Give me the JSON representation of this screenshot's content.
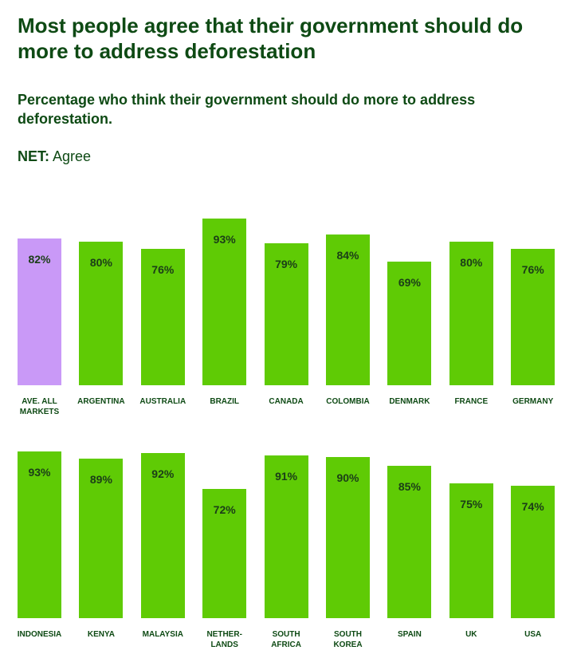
{
  "title": "Most people agree that their government should do more to address deforestation",
  "subtitle": "Percentage who think their government should do more to address deforestation.",
  "net_label": "NET:",
  "net_value": "Agree",
  "chart_data": [
    {
      "type": "bar",
      "categories": [
        "AVE. ALL\nMARKETS",
        "ARGENTINA",
        "AUSTRALIA",
        "BRAZIL",
        "CANADA",
        "COLOMBIA",
        "DENMARK",
        "FRANCE",
        "GERMANY"
      ],
      "values": [
        82,
        80,
        76,
        93,
        79,
        84,
        69,
        80,
        76
      ],
      "value_labels": [
        "82%",
        "80%",
        "76%",
        "93%",
        "79%",
        "84%",
        "69%",
        "80%",
        "76%"
      ],
      "colors": [
        "#c999f7",
        "#5fcb05",
        "#5fcb05",
        "#5fcb05",
        "#5fcb05",
        "#5fcb05",
        "#5fcb05",
        "#5fcb05",
        "#5fcb05"
      ]
    },
    {
      "type": "bar",
      "categories": [
        "INDONESIA",
        "KENYA",
        "MALAYSIA",
        "NETHER-\nLANDS",
        "SOUTH\nAFRICA",
        "SOUTH\nKOREA",
        "SPAIN",
        "UK",
        "USA"
      ],
      "values": [
        93,
        89,
        92,
        72,
        91,
        90,
        85,
        75,
        74
      ],
      "value_labels": [
        "93%",
        "89%",
        "92%",
        "72%",
        "91%",
        "90%",
        "85%",
        "75%",
        "74%"
      ],
      "colors": [
        "#5fcb05",
        "#5fcb05",
        "#5fcb05",
        "#5fcb05",
        "#5fcb05",
        "#5fcb05",
        "#5fcb05",
        "#5fcb05",
        "#5fcb05"
      ]
    }
  ]
}
